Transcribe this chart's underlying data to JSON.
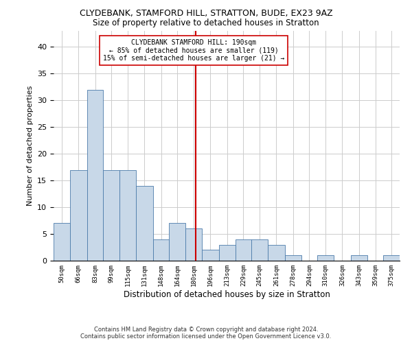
{
  "title1": "CLYDEBANK, STAMFORD HILL, STRATTON, BUDE, EX23 9AZ",
  "title2": "Size of property relative to detached houses in Stratton",
  "xlabel": "Distribution of detached houses by size in Stratton",
  "ylabel": "Number of detached properties",
  "footer1": "Contains HM Land Registry data © Crown copyright and database right 2024.",
  "footer2": "Contains public sector information licensed under the Open Government Licence v3.0.",
  "annotation_line1": "CLYDEBANK STAMFORD HILL: 190sqm",
  "annotation_line2": "← 85% of detached houses are smaller (119)",
  "annotation_line3": "15% of semi-detached houses are larger (21) →",
  "property_size": 190,
  "bar_color": "#c8d8e8",
  "bar_edge_color": "#4a7aaa",
  "vline_color": "#cc0000",
  "annotation_box_edge": "#cc0000",
  "grid_color": "#cccccc",
  "background_color": "#ffffff",
  "categories": [
    "50sqm",
    "66sqm",
    "83sqm",
    "99sqm",
    "115sqm",
    "131sqm",
    "148sqm",
    "164sqm",
    "180sqm",
    "196sqm",
    "213sqm",
    "229sqm",
    "245sqm",
    "261sqm",
    "278sqm",
    "294sqm",
    "310sqm",
    "326sqm",
    "343sqm",
    "359sqm",
    "375sqm"
  ],
  "bin_edges": [
    50,
    66,
    83,
    99,
    115,
    131,
    148,
    164,
    180,
    196,
    213,
    229,
    245,
    261,
    278,
    294,
    310,
    326,
    343,
    359,
    375,
    391
  ],
  "values": [
    7,
    17,
    32,
    17,
    17,
    14,
    4,
    7,
    6,
    2,
    3,
    4,
    4,
    3,
    1,
    0,
    1,
    0,
    1,
    0,
    1
  ],
  "ylim": [
    0,
    43
  ],
  "yticks": [
    0,
    5,
    10,
    15,
    20,
    25,
    30,
    35,
    40
  ]
}
